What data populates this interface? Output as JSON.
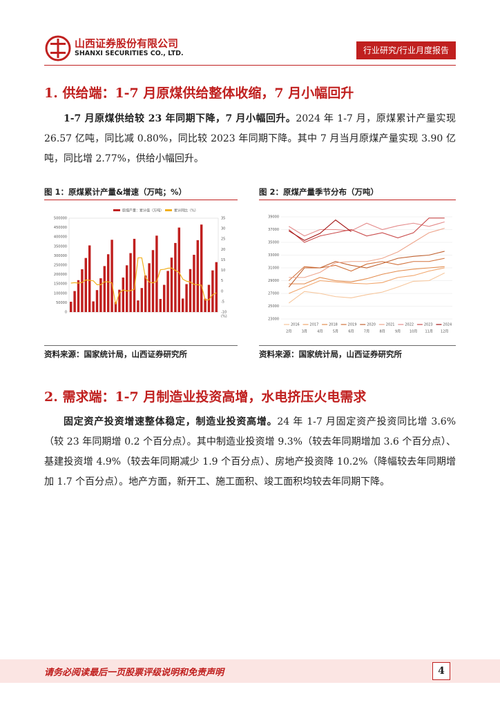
{
  "header": {
    "company_cn": "山西证券股份有限公司",
    "company_en": "SHANXI SECURITIES CO., LTD.",
    "report_type": "行业研究/行业月度报告"
  },
  "sections": [
    {
      "heading": "1. 供给端：1-7 月原煤供给整体收缩，7 月小幅回升",
      "lead": "1-7 月原煤供给较 23 年同期下降，7 月小幅回升。",
      "text": "2024 年 1-7 月，原煤累计产量实现 26.57 亿吨，同比减 0.80%，同比较 2023 年同期下降。其中 7 月当月原煤产量实现 3.90 亿吨，同比增 2.77%，供给小幅回升。"
    },
    {
      "heading": "2. 需求端：1-7 月制造业投资高增，水电挤压火电需求",
      "lead": "固定资产投资增速整体稳定，制造业投资高增。",
      "text": "24 年 1-7 月固定资产投资同比增 3.6%（较 23 年同期增 0.2 个百分点）。其中制造业投资增 9.3%（较去年同期增加 3.6 个百分点）、基建投资增 4.9%（较去年同期减少 1.9 个百分点）、房地产投资降 10.2%（降幅较去年同期增加 1.7 个百分点）。地产方面，新开工、施工面积、竣工面积均较去年同期下降。"
    }
  ],
  "figures": [
    {
      "caption": "图 1：原煤累计产量&增速（万吨；%）",
      "source": "资料来源：国家统计局，山西证券研究所",
      "chart": {
        "type": "bar-line",
        "categories": [
          null,
          null,
          null,
          null,
          null,
          null,
          null,
          null,
          null,
          null,
          null,
          null,
          null,
          null,
          null,
          null,
          null,
          null,
          null,
          null,
          null,
          null,
          null,
          null,
          null,
          null,
          null,
          null,
          null,
          null,
          null,
          null,
          null,
          null,
          null,
          null,
          null,
          null,
          null,
          null
        ],
        "series": [
          {
            "name": "原煤产量：累计值（万吨）",
            "color": "#c0201f",
            "axis": "y",
            "values": [
              55000,
              112000,
              170000,
              228000,
              288000,
              355000,
              57000,
              117000,
              180000,
              245000,
              308000,
              385000,
              54000,
              119000,
              184000,
              249000,
              314000,
              390000,
              62000,
              128000,
              195000,
              260000,
              330000,
              407000,
              70000,
              145000,
              219000,
              290000,
              368000,
              450000,
              72000,
              149000,
              229000,
              305000,
              383000,
              466000,
              71000,
              145000,
              222000,
              266000
            ]
          },
          {
            "name": "累计同比（%）",
            "color": "#f2b01e",
            "axis": "y2",
            "values": [
              3.9,
              4.1,
              3.9,
              4.2,
              5.4,
              5.2,
              5.0,
              3.1,
              3.1,
              4.5,
              4.5,
              4.0,
              -6.3,
              -0.8,
              0.6,
              0.1,
              0.3,
              0.9,
              16.0,
              16.0,
              6.4,
              4.4,
              4.0,
              4.7,
              10.3,
              10.5,
              11.0,
              11.1,
              10.0,
              9.0,
              5.8,
              4.8,
              4.4,
              3.3,
              3.1,
              2.9,
              -4.2,
              -4.1,
              -1.7,
              -0.8
            ]
          }
        ],
        "ylim": [
          0,
          500000
        ],
        "yticks": [
          0,
          50000,
          100000,
          150000,
          200000,
          250000,
          300000,
          350000,
          400000,
          450000,
          500000
        ],
        "y2lim": [
          -10,
          35
        ],
        "y2ticks": [
          -10,
          -5,
          0,
          5,
          10,
          15,
          20,
          25,
          30,
          35
        ],
        "y2_label": "(%)",
        "grid": false
      }
    },
    {
      "caption": "图 2：原煤产量季节分布（万吨）",
      "source": "资料来源：国家统计局，山西证券研究所",
      "chart": {
        "type": "line",
        "categories": [
          "2月",
          "3月",
          "4月",
          "5月",
          "6月",
          "7月",
          "8月",
          "9月",
          "10月",
          "11月",
          "12月"
        ],
        "series": [
          {
            "name": "2016",
            "color": "#f6c59a",
            "values": [
              25500,
              27300,
              27000,
              26500,
              26300,
              26800,
              27200,
              28000,
              28900,
              29000,
              30200
            ]
          },
          {
            "name": "2017",
            "color": "#f1a56b",
            "values": [
              27000,
              28000,
              29000,
              28800,
              28600,
              28500,
              28700,
              29500,
              29800,
              30500,
              31000
            ]
          },
          {
            "name": "2018",
            "color": "#e38b4c",
            "values": [
              28500,
              28500,
              29500,
              29000,
              28800,
              29300,
              30000,
              30500,
              30800,
              31000,
              31200
            ]
          },
          {
            "name": "2019",
            "color": "#d2713a",
            "values": [
              29000,
              31200,
              31000,
              31400,
              30500,
              31600,
              32000,
              31500,
              32000,
              32000,
              32500
            ]
          },
          {
            "name": "2020",
            "color": "#c0602e",
            "values": [
              28000,
              31000,
              31000,
              32000,
              31400,
              31000,
              31700,
              32500,
              32800,
              33000,
              33600
            ]
          },
          {
            "name": "2021",
            "color": "#eea58c",
            "values": [
              29500,
              29500,
              30300,
              31800,
              32000,
              32000,
              32500,
              33500,
              35000,
              36500,
              37200
            ]
          },
          {
            "name": "2022",
            "color": "#e48a8a",
            "values": [
              37500,
              36000,
              37000,
              37000,
              36800,
              38000,
              37000,
              37600,
              38000,
              37500,
              38200
            ]
          },
          {
            "name": "2023",
            "color": "#c94a4a",
            "values": [
              37000,
              35000,
              36000,
              36500,
              37000,
              36000,
              36500,
              35700,
              36500,
              38800,
              38800
            ]
          },
          {
            "name": "2024",
            "color": "#a31515",
            "values": [
              36800,
              35300,
              36400,
              38500,
              36700,
              null,
              null,
              null,
              null,
              null,
              null
            ]
          }
        ],
        "ylim": [
          23000,
          39000
        ],
        "yticks": [
          23000,
          25000,
          27000,
          29000,
          31000,
          33000,
          35000,
          37000,
          39000
        ],
        "grid": true
      }
    }
  ],
  "footer": {
    "disclaimer": "请务必阅读最后一页股票评级说明和免责声明",
    "page": "4"
  }
}
